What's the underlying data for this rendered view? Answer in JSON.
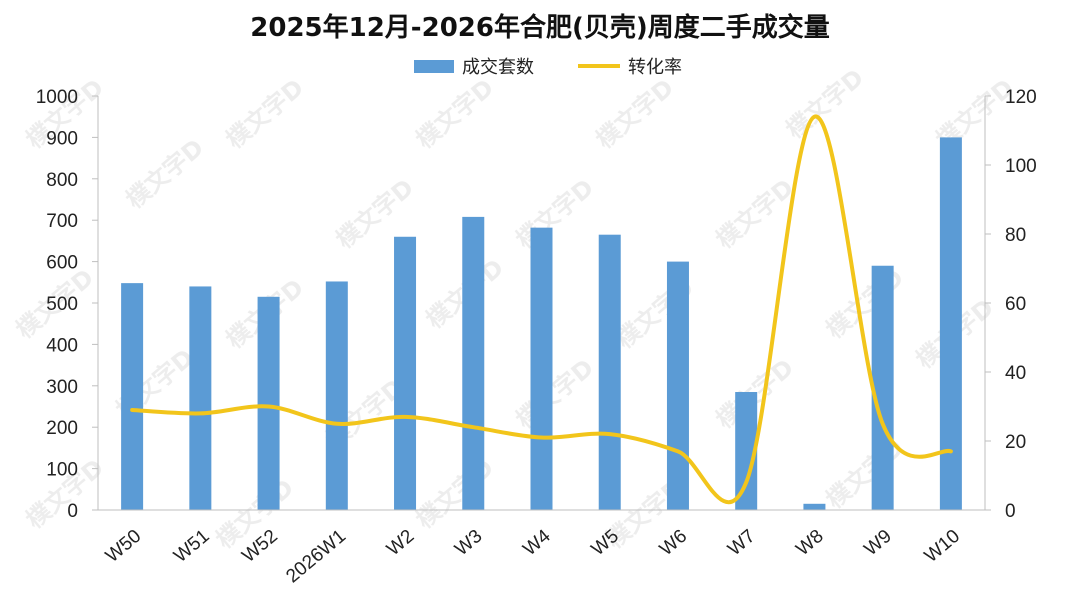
{
  "chart_data": {
    "type": "bar+line",
    "title": "2025年12月-2026年合肥(贝壳)周度二手成交量",
    "categories": [
      "W50",
      "W51",
      "W52",
      "2026W1",
      "W2",
      "W3",
      "W4",
      "W5",
      "W6",
      "W7",
      "W8",
      "W9",
      "W10"
    ],
    "series": [
      {
        "name": "成交套数",
        "type": "bar",
        "axis": "left",
        "color": "#5B9BD5",
        "values": [
          548,
          540,
          515,
          552,
          660,
          708,
          682,
          665,
          600,
          285,
          15,
          590,
          900
        ]
      },
      {
        "name": "转化率",
        "type": "line",
        "axis": "right",
        "color": "#F2C51B",
        "values": [
          29,
          28,
          30,
          25,
          27,
          24,
          21,
          22,
          17,
          8,
          114,
          25,
          17
        ]
      }
    ],
    "y_left": {
      "min": 0,
      "max": 1000,
      "ticks": [
        0,
        100,
        200,
        300,
        400,
        500,
        600,
        700,
        800,
        900,
        1000
      ]
    },
    "y_right": {
      "min": 0,
      "max": 120,
      "ticks": [
        0,
        20,
        40,
        60,
        80,
        100,
        120
      ]
    },
    "legend": {
      "position": "top"
    },
    "grid": false,
    "watermark": "樸文字D"
  }
}
